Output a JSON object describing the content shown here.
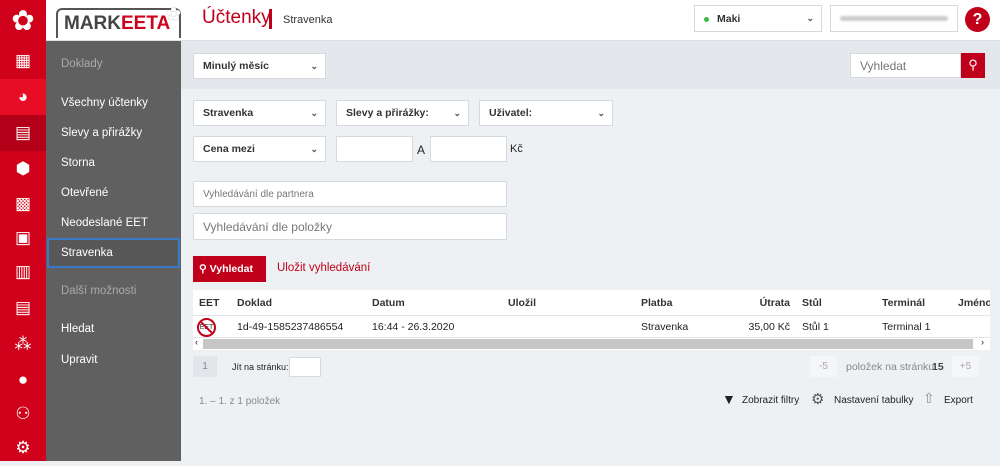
{
  "header": {
    "brand": "MARK",
    "brand_accent": "EETA",
    "title": "Účtenky",
    "subtitle": "Stravenka",
    "user_select": "Maki",
    "user_status_color": "#3db843",
    "help_label": "?"
  },
  "iconbar": [
    "dashboard-icon",
    "pie-chart-icon",
    "receipts-icon",
    "box-icon",
    "calculator-icon",
    "cash-register-icon",
    "clipboard-icon",
    "printer-icon",
    "boxes-icon",
    "user-icon",
    "users-icon",
    "gear-icon"
  ],
  "nav": {
    "section1": "Doklady",
    "items": [
      "Všechny účtenky",
      "Slevy a přirážky",
      "Storna",
      "Otevřené",
      "Neodeslané EET",
      "Stravenka"
    ],
    "section2": "Další možnosti",
    "items2": [
      "Hledat",
      "Upravit"
    ]
  },
  "filters": {
    "period": "Minulý měsíc",
    "search_placeholder": "Vyhledat",
    "payment": "Stravenka",
    "discounts": "Slevy a přirážky:",
    "user": "Uživatel:",
    "price": "Cena mezi",
    "and": "A",
    "currency": "Kč",
    "partner_placeholder": "Vyhledávání dle partnera",
    "item_placeholder": "Vyhledávání dle položky",
    "search_button": "Vyhledat",
    "save_search": "Uložit vyhledávání"
  },
  "table": {
    "columns": [
      "EET",
      "Doklad",
      "Datum",
      "Uložil",
      "Platba",
      "Útrata",
      "Stůl",
      "Terminál",
      "Jméno"
    ],
    "rows": [
      {
        "eet": "EET",
        "doklad": "1d-49-1585237486554",
        "datum": "16:44 - 26.3.2020",
        "ulozil": "",
        "platba": "Stravenka",
        "utrata": "35,00 Kč",
        "stul": "Stůl 1",
        "terminal": "Terminal 1",
        "jmeno": ""
      }
    ]
  },
  "pagination": {
    "page": "1",
    "goto_label": "Jít na stránku:",
    "minus": "-5",
    "per_page_label": "položek na stránku",
    "per_page": "15",
    "plus": "+5",
    "summary": "1. – 1. z 1 položek"
  },
  "actions": {
    "filters": "Zobrazit filtry",
    "table_settings": "Nastavení tabulky",
    "export": "Export"
  },
  "colors": {
    "accent": "#d0021b",
    "nav": "#606060"
  }
}
